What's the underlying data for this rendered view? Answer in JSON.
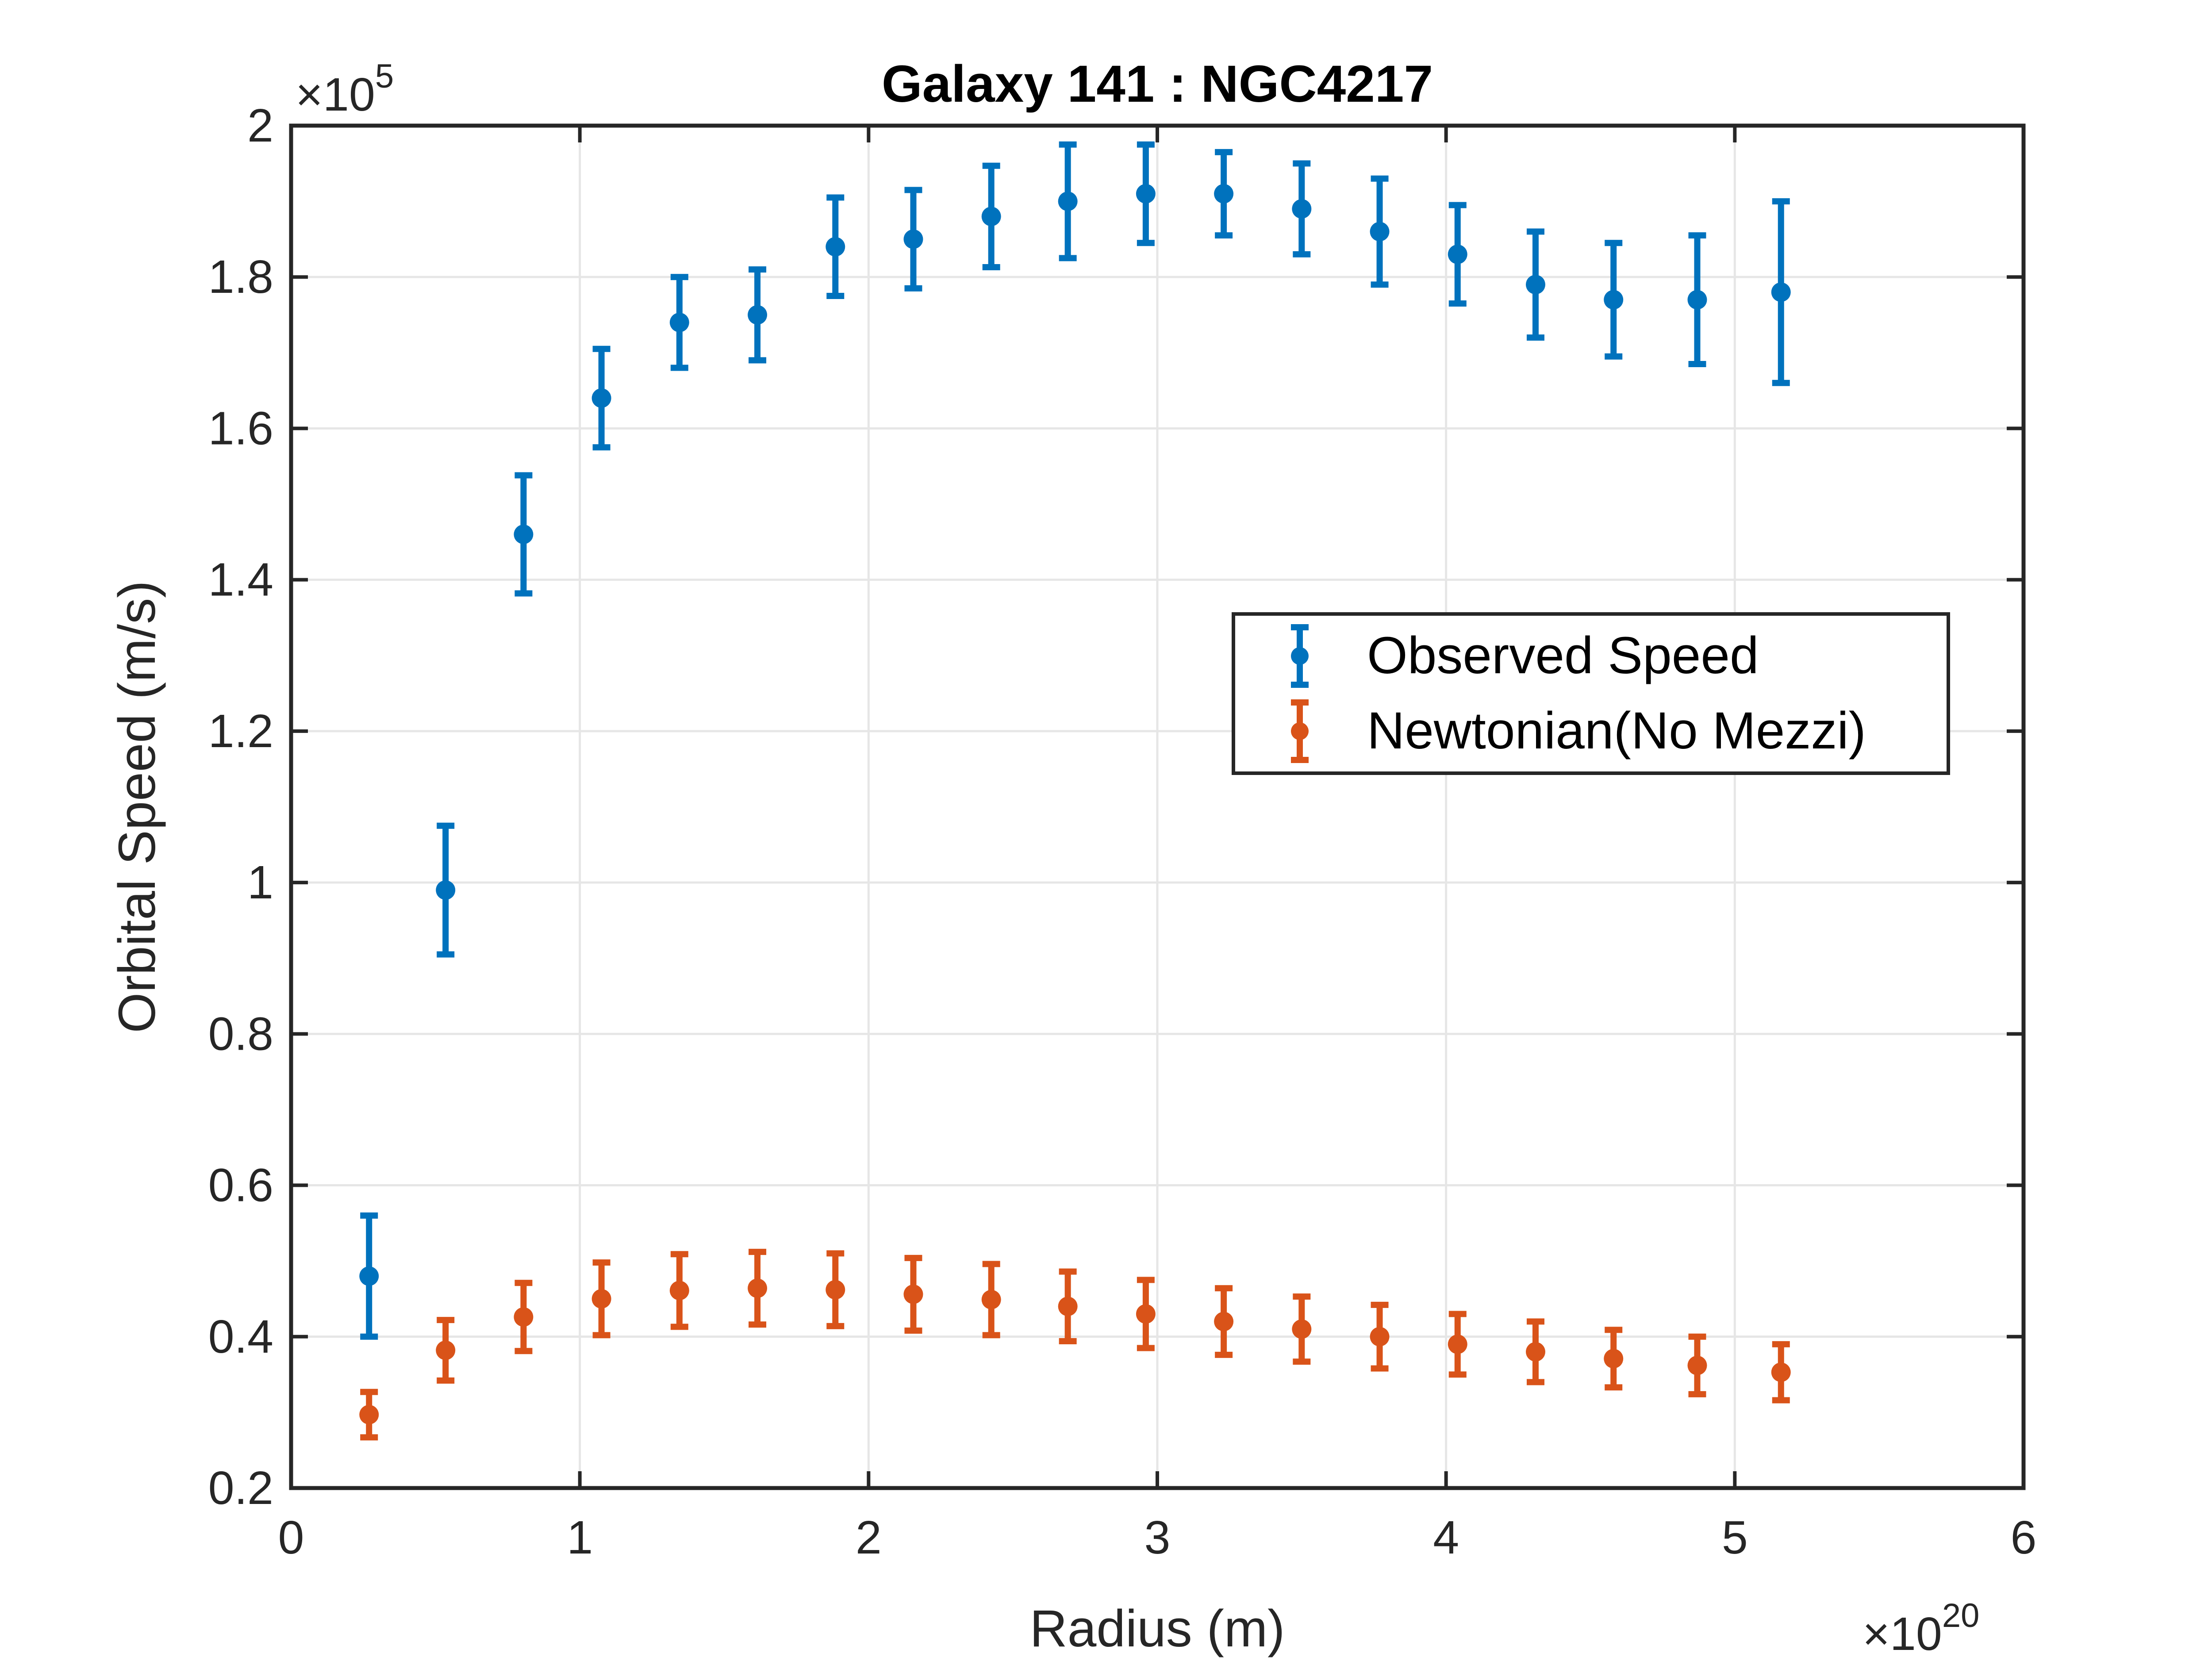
{
  "chart_data": {
    "type": "scatter",
    "title": "Galaxy 141 : NGC4217",
    "xlabel": "Radius (m)",
    "ylabel": "Orbital Speed (m/s)",
    "x_exponent_label": {
      "base": "×10",
      "exp": "20"
    },
    "y_exponent_label": {
      "base": "×10",
      "exp": "5"
    },
    "xlim": [
      0,
      6
    ],
    "ylim": [
      0.2,
      2
    ],
    "x_unit_scale": "1e20",
    "y_unit_scale": "1e5",
    "xticks": [
      0,
      1,
      2,
      3,
      4,
      5,
      6
    ],
    "xtick_labels": [
      "0",
      "1",
      "2",
      "3",
      "4",
      "5",
      "6"
    ],
    "yticks": [
      0.2,
      0.4,
      0.6,
      0.8,
      1.0,
      1.2,
      1.4,
      1.6,
      1.8,
      2.0
    ],
    "ytick_labels": [
      "0.2",
      "0.4",
      "0.6",
      "0.8",
      "1",
      "1.2",
      "1.4",
      "1.6",
      "1.8",
      "2"
    ],
    "grid": true,
    "legend_position": "right",
    "series": [
      {
        "name": "Observed Speed",
        "color": "#0072BD",
        "x": [
          0.27,
          0.535,
          0.805,
          1.075,
          1.345,
          1.615,
          1.885,
          2.155,
          2.425,
          2.69,
          2.96,
          3.23,
          3.5,
          3.77,
          4.04,
          4.31,
          4.58,
          4.87,
          5.16
        ],
        "y": [
          0.48,
          0.99,
          1.46,
          1.64,
          1.74,
          1.75,
          1.84,
          1.85,
          1.88,
          1.9,
          1.91,
          1.91,
          1.89,
          1.86,
          1.83,
          1.79,
          1.77,
          1.77,
          1.78
        ],
        "err": [
          0.08,
          0.085,
          0.078,
          0.065,
          0.06,
          0.06,
          0.065,
          0.065,
          0.067,
          0.075,
          0.065,
          0.055,
          0.06,
          0.07,
          0.065,
          0.07,
          0.075,
          0.085,
          0.12
        ]
      },
      {
        "name": "Newtonian(No Mezzi)",
        "color": "#D95319",
        "x": [
          0.27,
          0.535,
          0.805,
          1.075,
          1.345,
          1.615,
          1.885,
          2.155,
          2.425,
          2.69,
          2.96,
          3.23,
          3.5,
          3.77,
          4.04,
          4.31,
          4.58,
          4.87,
          5.16
        ],
        "y": [
          0.297,
          0.382,
          0.426,
          0.45,
          0.461,
          0.464,
          0.462,
          0.456,
          0.449,
          0.44,
          0.43,
          0.42,
          0.41,
          0.4,
          0.39,
          0.38,
          0.371,
          0.362,
          0.353
        ],
        "err": [
          0.03,
          0.04,
          0.045,
          0.048,
          0.048,
          0.048,
          0.048,
          0.048,
          0.047,
          0.046,
          0.045,
          0.044,
          0.043,
          0.042,
          0.04,
          0.04,
          0.038,
          0.038,
          0.037
        ]
      }
    ]
  }
}
